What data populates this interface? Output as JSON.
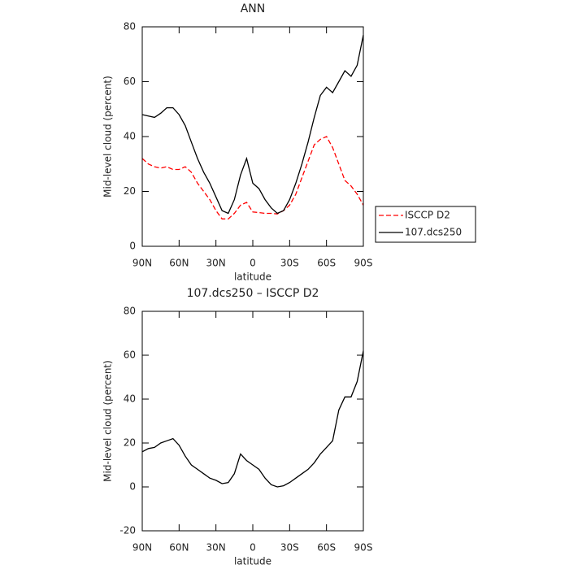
{
  "chart_data": [
    {
      "type": "line",
      "title": "ANN",
      "ylabel": "Mid-level cloud (percent)",
      "xlabel": "latitude",
      "x": [
        90,
        85,
        80,
        75,
        70,
        65,
        60,
        55,
        50,
        45,
        40,
        35,
        30,
        25,
        20,
        15,
        10,
        5,
        0,
        -5,
        -10,
        -15,
        -20,
        -25,
        -30,
        -35,
        -40,
        -45,
        -50,
        -55,
        -60,
        -65,
        -70,
        -75,
        -80,
        -85,
        -90
      ],
      "series": [
        {
          "name": "ISCCP D2",
          "color": "#ff0000",
          "linestyle": "dashed",
          "values": [
            32,
            30,
            29,
            28.5,
            29,
            28,
            28,
            29,
            27,
            23,
            20,
            17,
            13,
            10,
            10,
            12,
            15,
            16,
            12.5,
            12.3,
            12,
            12,
            11.8,
            13,
            15,
            19,
            25,
            31,
            37,
            39,
            40,
            36,
            30,
            24,
            22,
            19,
            15
          ]
        },
        {
          "name": "107.dcs250",
          "color": "#000000",
          "linestyle": "solid",
          "values": [
            48,
            47.5,
            47,
            48.5,
            50.5,
            50.5,
            48,
            44,
            38,
            32,
            27,
            23,
            18,
            13,
            12,
            17,
            26,
            32,
            23,
            21,
            17,
            14,
            12,
            13,
            17,
            23,
            30,
            38,
            47,
            55,
            58,
            56,
            60,
            64,
            62,
            66,
            77
          ]
        }
      ],
      "xlim": [
        90,
        -90
      ],
      "xticks": [
        {
          "value": 90,
          "label": "90N"
        },
        {
          "value": 60,
          "label": "60N"
        },
        {
          "value": 30,
          "label": "30N"
        },
        0,
        {
          "value": -30,
          "label": "30S"
        },
        {
          "value": -60,
          "label": "60S"
        },
        {
          "value": -90,
          "label": "90S"
        }
      ],
      "ylim": [
        0,
        80
      ],
      "yticks": [
        0,
        20,
        40,
        60,
        80
      ],
      "legend": "right"
    },
    {
      "type": "line",
      "title": "107.dcs250 – ISCCP D2",
      "ylabel": "Mid-level cloud (percent)",
      "xlabel": "latitude",
      "x": [
        90,
        85,
        80,
        75,
        70,
        65,
        60,
        55,
        50,
        45,
        40,
        35,
        30,
        25,
        20,
        15,
        10,
        5,
        0,
        -5,
        -10,
        -15,
        -20,
        -25,
        -30,
        -35,
        -40,
        -45,
        -50,
        -55,
        -60,
        -65,
        -70,
        -75,
        -80,
        -85,
        -90
      ],
      "series": [
        {
          "color": "#000000",
          "linestyle": "solid",
          "values": [
            16,
            17.5,
            18,
            20,
            21,
            22,
            19,
            14,
            10,
            8,
            6,
            4,
            3,
            1.5,
            2,
            6,
            15,
            12,
            10,
            8,
            4,
            1,
            0,
            0.5,
            2,
            4,
            6,
            8,
            11,
            15,
            18,
            21,
            35,
            41,
            41,
            48,
            62
          ]
        }
      ],
      "xlim": [
        90,
        -90
      ],
      "xticks": [
        {
          "value": 90,
          "label": "90N"
        },
        {
          "value": 60,
          "label": "60N"
        },
        {
          "value": 30,
          "label": "30N"
        },
        0,
        {
          "value": -30,
          "label": "30S"
        },
        {
          "value": -60,
          "label": "60S"
        },
        {
          "value": -90,
          "label": "90S"
        }
      ],
      "ylim": [
        -20,
        80
      ],
      "yticks": [
        -20,
        0,
        20,
        40,
        60,
        80
      ]
    }
  ]
}
